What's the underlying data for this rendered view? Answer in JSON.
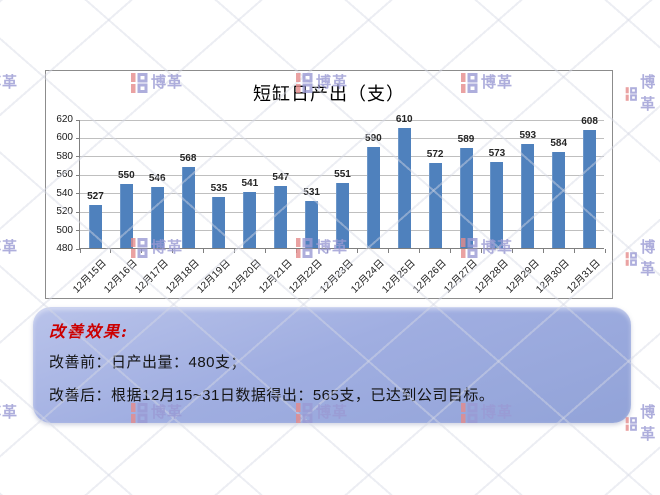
{
  "chart_data": {
    "type": "bar",
    "title": "短缸日产出（支）",
    "categories": [
      "12月15日",
      "12月16日",
      "12月17日",
      "12月18日",
      "12月19日",
      "12月20日",
      "12月21日",
      "12月22日",
      "12月23日",
      "12月24日",
      "12月25日",
      "12月26日",
      "12月27日",
      "12月28日",
      "12月29日",
      "12月30日",
      "12月31日"
    ],
    "values": [
      527,
      550,
      546,
      568,
      535,
      541,
      547,
      531,
      551,
      590,
      610,
      572,
      589,
      573,
      593,
      584,
      608
    ],
    "xlabel": "",
    "ylabel": "",
    "ylim": [
      480,
      620
    ],
    "ytick_step": 20,
    "grid": true,
    "legend_position": "none",
    "bar_color": "#4f81bd",
    "data_labels": true
  },
  "summary": {
    "heading": "改善效果:",
    "heading_color": "#cc0000",
    "line1": "改善前：日产出量：480支；",
    "line2": "改善后：根据12月15~31日数据得出：565支，已达到公司目标。"
  },
  "watermark": {
    "logo_text": "博革",
    "icon": "boge-logo-icon",
    "red": "#e58b8b",
    "purple": "#9a9ad4",
    "grid_cols": [
      -35,
      130,
      295,
      460,
      625
    ],
    "grid_rows": [
      72,
      237,
      402
    ]
  }
}
